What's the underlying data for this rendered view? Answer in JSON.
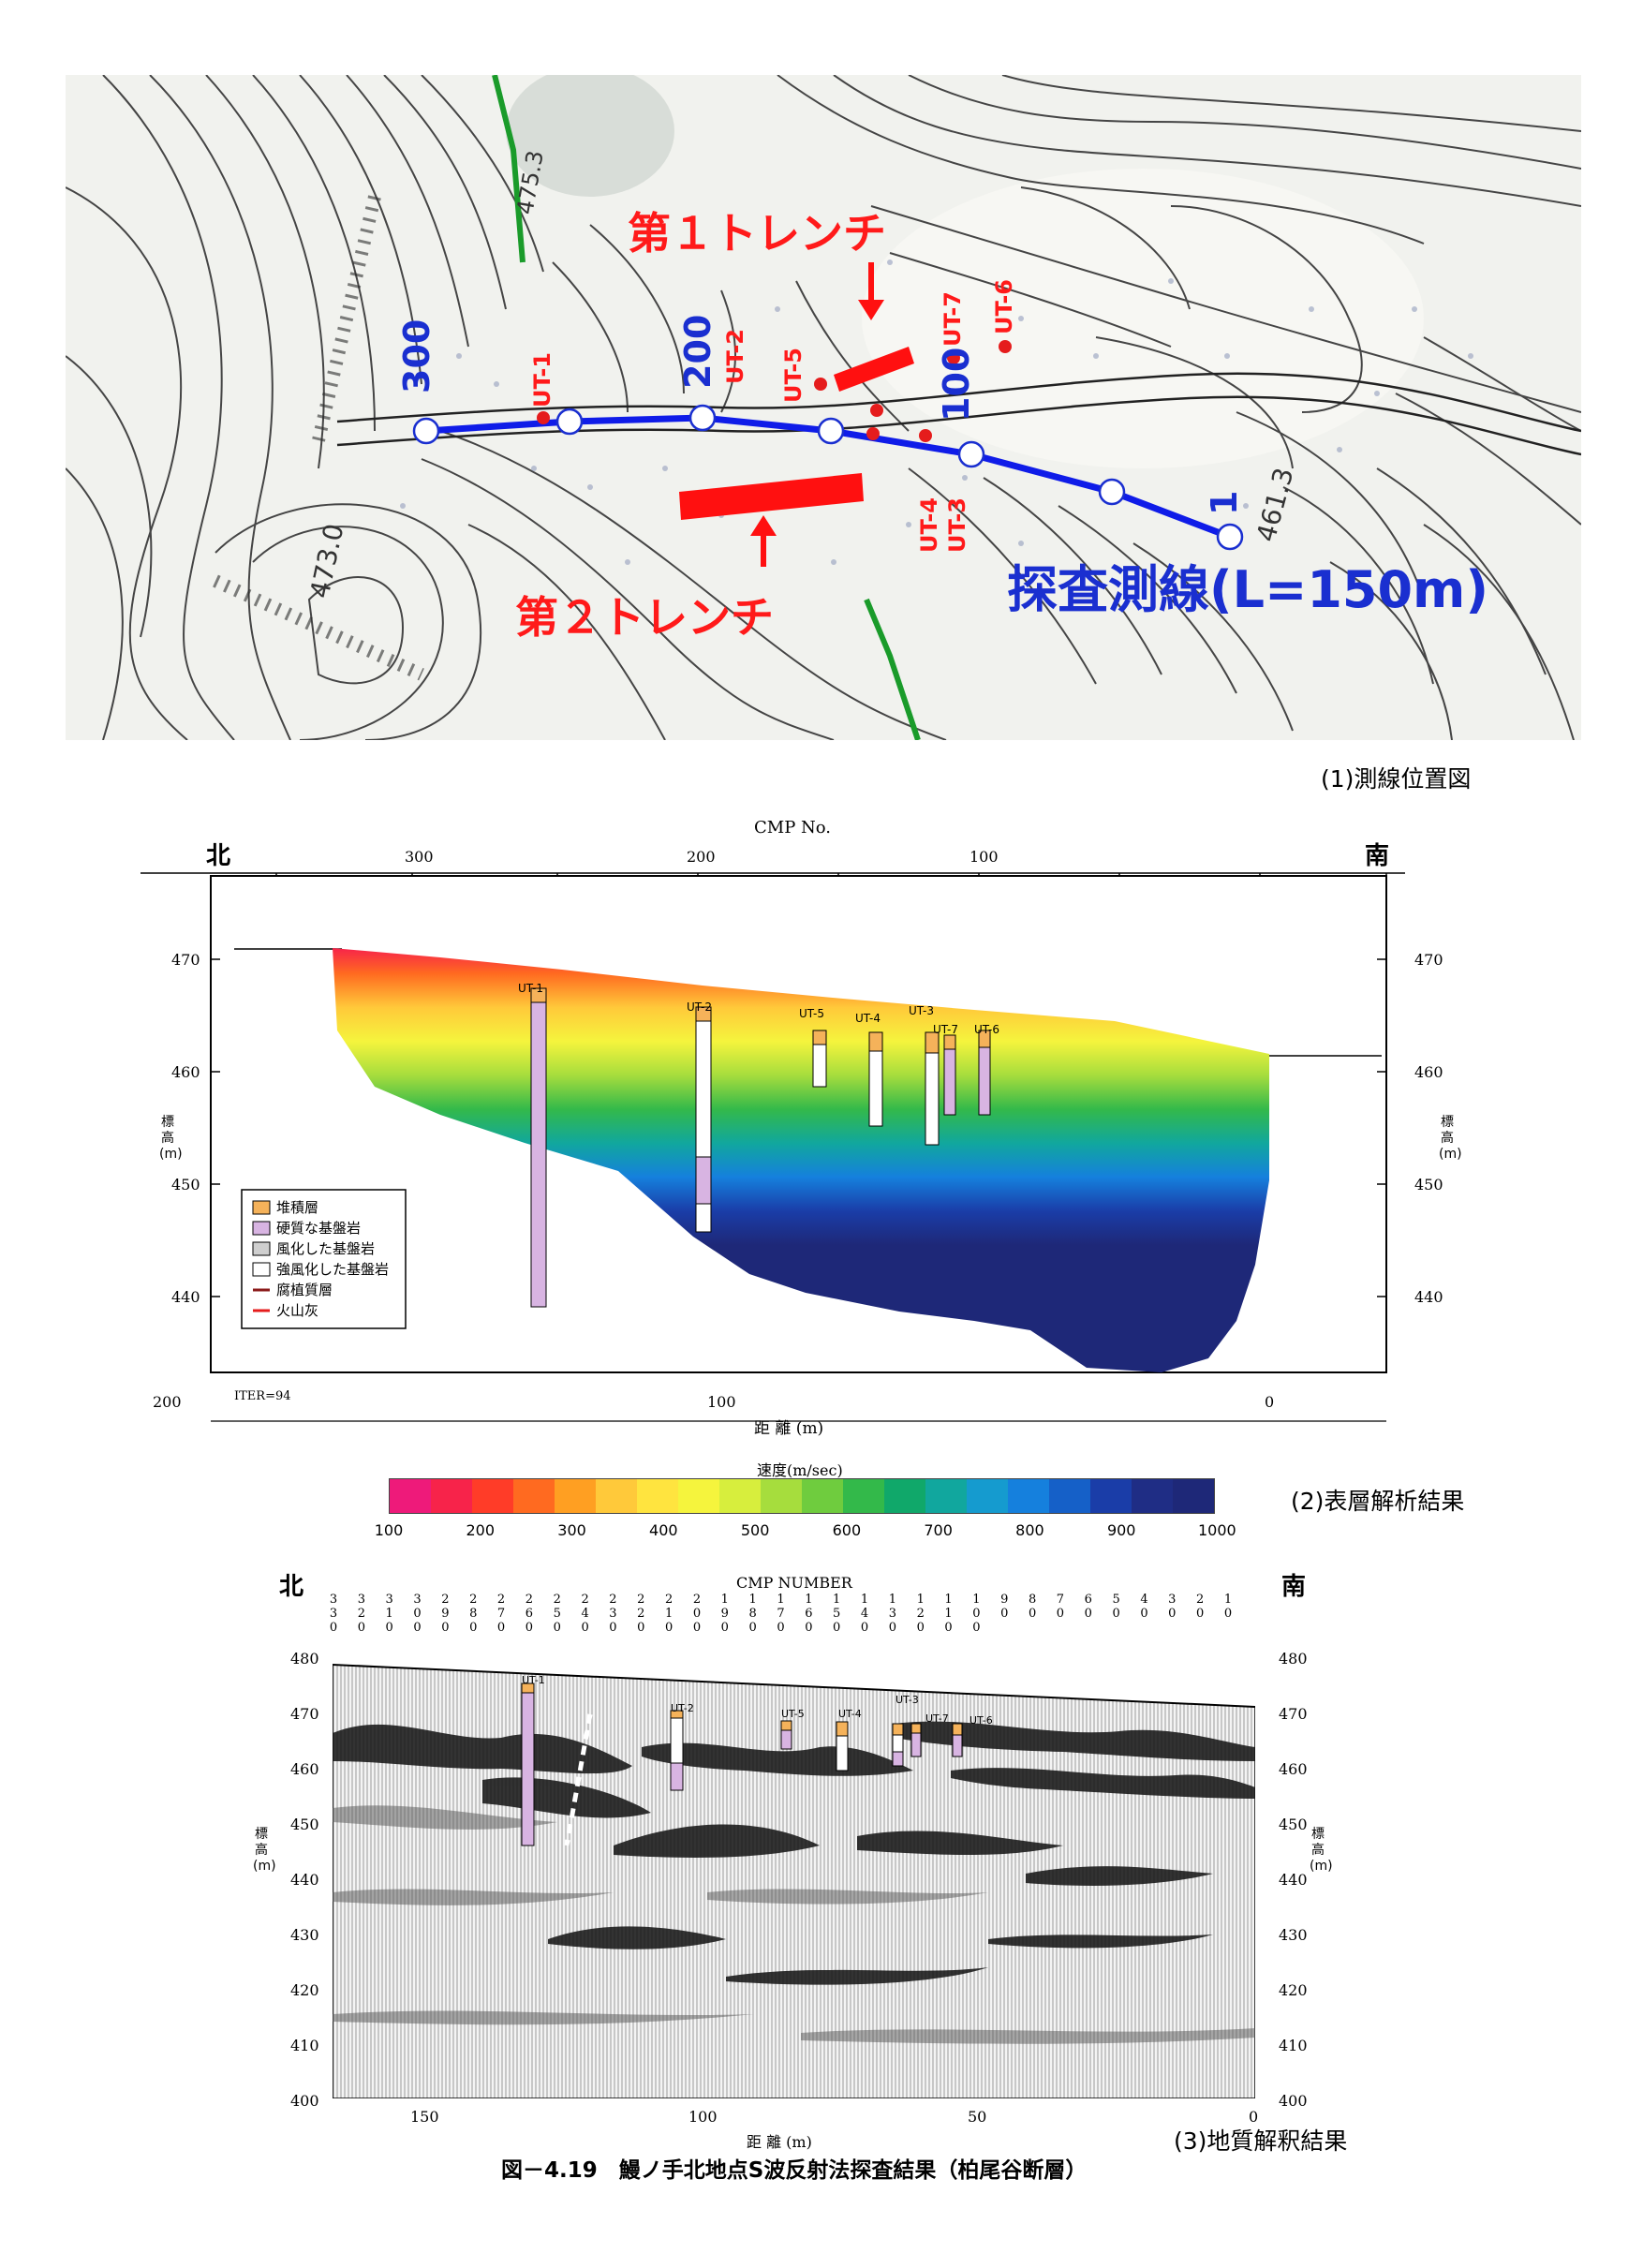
{
  "map": {
    "trench1": "第１トレンチ",
    "trench2": "第２トレンチ",
    "survey_line": "探査測線(L=150m)",
    "cmp_labels": [
      "300",
      "200",
      "100",
      "1"
    ],
    "boreholes": [
      "UT-1",
      "UT-2",
      "UT-5",
      "UT-7",
      "UT-6",
      "UT-4",
      "UT-3"
    ],
    "elev1": "473.0",
    "elev2": "461.3",
    "elev3": "475.3",
    "caption": "(1)測線位置図"
  },
  "panel2": {
    "north": "北",
    "south": "南",
    "cmp_title": "CMP No.",
    "cmp_ticks": [
      "300",
      "200",
      "100"
    ],
    "elev_ticks": [
      "470",
      "460",
      "450",
      "440"
    ],
    "ylabel": "標高(m)",
    "dist_ticks": [
      "200",
      "100",
      "0"
    ],
    "xlabel": "距 離 (m)",
    "iter": "ITER=94",
    "boreholes": [
      "UT-1",
      "UT-2",
      "UT-5",
      "UT-4",
      "UT-3",
      "UT-7",
      "UT-6"
    ],
    "legend": [
      "堆積層",
      "硬質な基盤岩",
      "風化した基盤岩",
      "強風化した基盤岩",
      "腐植質層",
      "火山灰"
    ],
    "colorbar_title": "速度(m/sec)",
    "colorbar_ticks": [
      "100",
      "200",
      "300",
      "400",
      "500",
      "600",
      "700",
      "800",
      "900",
      "1000"
    ],
    "colorbar_colors": [
      "#ee1a7a",
      "#f7234a",
      "#ff3c28",
      "#ff6a20",
      "#ff9f22",
      "#ffc93a",
      "#ffe43f",
      "#f5f43d",
      "#d7ee3d",
      "#a6dd3d",
      "#6fcc3e",
      "#33b94a",
      "#10a86a",
      "#11a79e",
      "#159bcf",
      "#1580dd",
      "#1560c8",
      "#1a3da8",
      "#1f2d85",
      "#1e2878"
    ],
    "caption": "(2)表層解析結果"
  },
  "panel3": {
    "north": "北",
    "south": "南",
    "cmp_title": "CMP NUMBER",
    "cmp_ticks": [
      "330",
      "320",
      "310",
      "300",
      "290",
      "280",
      "270",
      "260",
      "250",
      "240",
      "230",
      "220",
      "210",
      "200",
      "190",
      "180",
      "170",
      "160",
      "150",
      "140",
      "130",
      "120",
      "110",
      "100",
      "90",
      "80",
      "70",
      "60",
      "50",
      "40",
      "30",
      "20",
      "10"
    ],
    "elev_ticks": [
      "480",
      "470",
      "460",
      "450",
      "440",
      "430",
      "420",
      "410",
      "400"
    ],
    "ylabel": "標高(m)",
    "dist_ticks": [
      "150",
      "100",
      "50",
      "0"
    ],
    "xlabel": "距 離 (m)",
    "boreholes": [
      "UT-1",
      "UT-2",
      "UT-5",
      "UT-4",
      "UT-3",
      "UT-7",
      "UT-6"
    ],
    "caption": "(3)地質解釈結果"
  },
  "figure_title": "図－4.19　鰻ノ手北地点S波反射法探査結果（柏尾谷断層）"
}
